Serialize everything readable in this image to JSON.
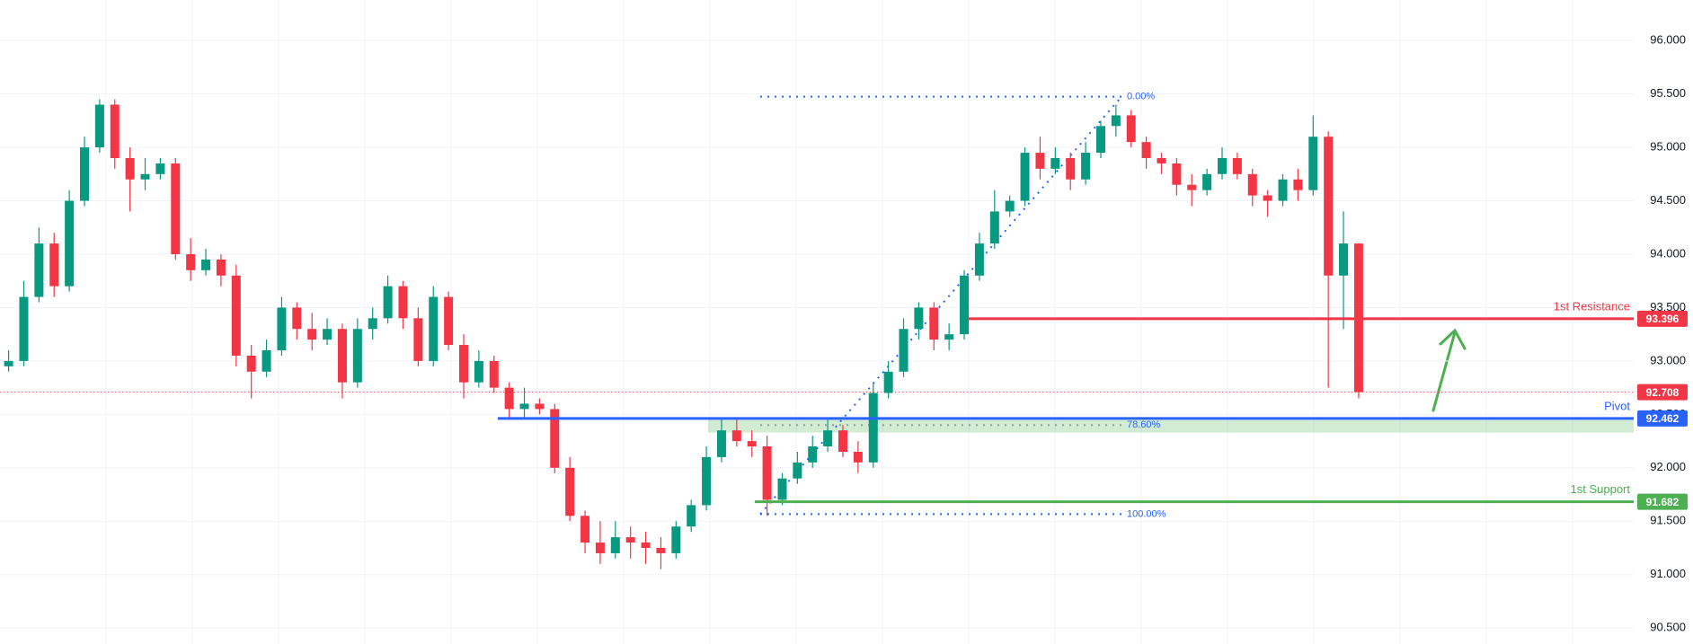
{
  "chart_data": {
    "type": "candlestick",
    "up_color": "#089981",
    "down_color": "#f23645",
    "ylim": [
      90.35,
      96.38
    ],
    "yticks": [
      {
        "value": 90.5,
        "label": "90.500"
      },
      {
        "value": 91,
        "label": "91.000"
      },
      {
        "value": 91.5,
        "label": "91.500"
      },
      {
        "value": 92,
        "label": "92.000"
      },
      {
        "value": 92.5,
        "label": "92.500"
      },
      {
        "value": 93,
        "label": "93.000"
      },
      {
        "value": 93.5,
        "label": "93.500"
      },
      {
        "value": 94,
        "label": "94.000"
      },
      {
        "value": 94.5,
        "label": "94.500"
      },
      {
        "value": 95,
        "label": "95.000"
      },
      {
        "value": 95.5,
        "label": "95.500"
      },
      {
        "value": 96,
        "label": "96.000"
      }
    ],
    "grid": true,
    "open": [
      92.95,
      93.0,
      93.6,
      94.1,
      93.7,
      94.5,
      95.0,
      95.4,
      94.9,
      94.7,
      94.75,
      94.85,
      94.0,
      93.85,
      93.95,
      93.8,
      93.05,
      92.9,
      93.1,
      93.5,
      93.3,
      93.2,
      93.3,
      92.8,
      93.3,
      93.4,
      93.7,
      93.4,
      93.0,
      93.6,
      93.15,
      92.8,
      93.0,
      92.75,
      92.55,
      92.6,
      92.55,
      92.0,
      91.55,
      91.3,
      91.2,
      91.35,
      91.3,
      91.25,
      91.2,
      91.45,
      91.65,
      92.1,
      92.35,
      92.25,
      92.2,
      91.7,
      91.9,
      92.05,
      92.2,
      92.35,
      92.15,
      92.05,
      92.7,
      92.9,
      93.3,
      93.5,
      93.2,
      93.25,
      93.8,
      94.1,
      94.4,
      94.5,
      94.95,
      94.8,
      94.9,
      94.7,
      94.95,
      95.2,
      95.3,
      95.05,
      94.9,
      94.85,
      94.65,
      94.6,
      94.75,
      94.9,
      94.75,
      94.55,
      94.5,
      94.7,
      94.6,
      95.1,
      93.8,
      94.1
    ],
    "high": [
      93.1,
      93.75,
      94.25,
      94.2,
      94.6,
      95.1,
      95.45,
      95.45,
      95.0,
      94.9,
      94.9,
      94.9,
      94.15,
      94.05,
      94.0,
      93.9,
      93.15,
      93.2,
      93.6,
      93.55,
      93.45,
      93.4,
      93.35,
      93.4,
      93.5,
      93.8,
      93.75,
      93.5,
      93.7,
      93.65,
      93.25,
      93.1,
      93.05,
      92.8,
      92.75,
      92.65,
      92.6,
      92.1,
      91.6,
      91.5,
      91.5,
      91.45,
      91.4,
      91.35,
      91.5,
      91.7,
      92.2,
      92.45,
      92.45,
      92.35,
      92.3,
      91.95,
      92.15,
      92.3,
      92.45,
      92.4,
      92.25,
      92.8,
      93.0,
      93.4,
      93.55,
      93.55,
      93.35,
      93.85,
      94.2,
      94.6,
      94.55,
      95.0,
      95.1,
      95.0,
      94.95,
      95.05,
      95.25,
      95.4,
      95.35,
      95.1,
      94.95,
      94.9,
      94.75,
      94.8,
      95.0,
      94.95,
      94.8,
      94.6,
      94.75,
      94.8,
      95.3,
      95.15,
      94.4,
      94.1
    ],
    "low": [
      92.9,
      92.95,
      93.55,
      93.6,
      93.65,
      94.45,
      94.95,
      94.8,
      94.4,
      94.6,
      94.7,
      93.95,
      93.75,
      93.8,
      93.7,
      92.95,
      92.65,
      92.85,
      93.05,
      93.2,
      93.1,
      93.15,
      92.65,
      92.75,
      93.2,
      93.35,
      93.3,
      92.95,
      92.95,
      93.1,
      92.65,
      92.75,
      92.7,
      92.45,
      92.45,
      92.5,
      91.95,
      91.5,
      91.2,
      91.1,
      91.15,
      91.15,
      91.1,
      91.05,
      91.15,
      91.4,
      91.6,
      92.05,
      92.2,
      92.1,
      91.55,
      91.65,
      91.85,
      92.0,
      92.15,
      92.1,
      91.95,
      92.0,
      92.65,
      92.85,
      93.2,
      93.1,
      93.1,
      93.2,
      93.75,
      94.05,
      94.35,
      94.45,
      94.7,
      94.75,
      94.6,
      94.65,
      94.9,
      95.1,
      95.0,
      94.8,
      94.75,
      94.55,
      94.45,
      94.55,
      94.7,
      94.7,
      94.45,
      94.35,
      94.45,
      94.5,
      94.55,
      92.75,
      93.3,
      92.65
    ],
    "close": [
      93.0,
      93.6,
      94.1,
      93.7,
      94.5,
      95.0,
      95.4,
      94.9,
      94.7,
      94.75,
      94.85,
      94.0,
      93.85,
      93.95,
      93.8,
      93.05,
      92.9,
      93.1,
      93.5,
      93.3,
      93.2,
      93.3,
      92.8,
      93.3,
      93.4,
      93.7,
      93.4,
      93.0,
      93.6,
      93.15,
      92.8,
      93.0,
      92.75,
      92.55,
      92.6,
      92.55,
      92.0,
      91.55,
      91.3,
      91.2,
      91.35,
      91.3,
      91.25,
      91.2,
      91.45,
      91.65,
      92.1,
      92.35,
      92.25,
      92.2,
      91.7,
      91.9,
      92.05,
      92.2,
      92.35,
      92.15,
      92.05,
      92.7,
      92.9,
      93.3,
      93.5,
      93.2,
      93.25,
      93.8,
      94.1,
      94.4,
      94.5,
      94.95,
      94.8,
      94.9,
      94.7,
      94.95,
      95.2,
      95.3,
      95.05,
      94.9,
      94.85,
      94.65,
      94.6,
      94.75,
      94.9,
      94.75,
      94.55,
      94.5,
      94.7,
      94.6,
      95.1,
      93.8,
      94.1,
      92.708
    ],
    "levels": [
      {
        "label": "1st Resistance",
        "value": 93.396,
        "color": "#f23645"
      },
      {
        "label": "Pivot",
        "value": 92.462,
        "color": "#2962ff"
      },
      {
        "label": "1st Support",
        "value": 91.682,
        "color": "#4caf50"
      }
    ],
    "zone": {
      "low": 92.33,
      "high": 92.47,
      "color": "#4caf50"
    },
    "fib": [
      {
        "label": "0.00%",
        "price": 95.475
      },
      {
        "label": "78.60%",
        "price": 92.4
      },
      {
        "label": "100.00%",
        "price": 91.566
      }
    ]
  }
}
